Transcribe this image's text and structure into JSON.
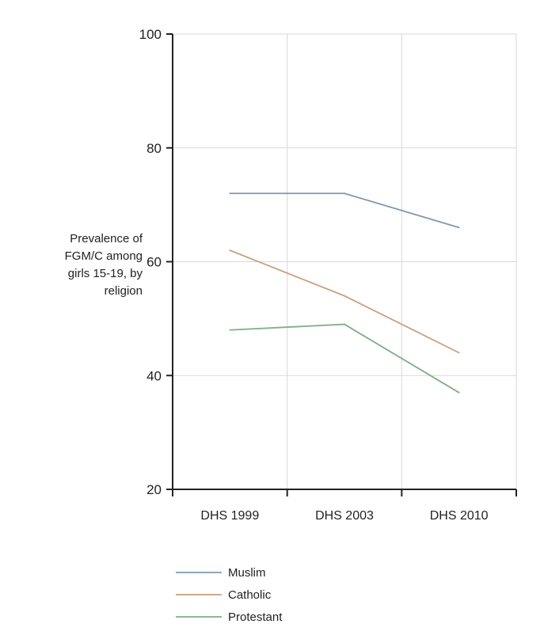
{
  "chart_data": {
    "type": "line",
    "title": "",
    "ylabel": "Prevalence of FGM/C among girls 15-19, by religion",
    "ylabel_lines": [
      "Prevalence of",
      "FGM/C among",
      "girls 15-19, by",
      "religion"
    ],
    "xlabel": "",
    "categories": [
      "DHS 1999",
      "DHS 2003",
      "DHS 2010"
    ],
    "ylim": [
      20,
      100
    ],
    "yticks": [
      20,
      40,
      60,
      80,
      100
    ],
    "grid": true,
    "legend_position": "bottom-left",
    "series": [
      {
        "name": "Muslim",
        "values": [
          72,
          72,
          66
        ],
        "color": "#7f99ab"
      },
      {
        "name": "Catholic",
        "values": [
          62,
          54,
          44
        ],
        "color": "#c9a07e"
      },
      {
        "name": "Protestant",
        "values": [
          48,
          49,
          37
        ],
        "color": "#7fae86"
      }
    ]
  }
}
